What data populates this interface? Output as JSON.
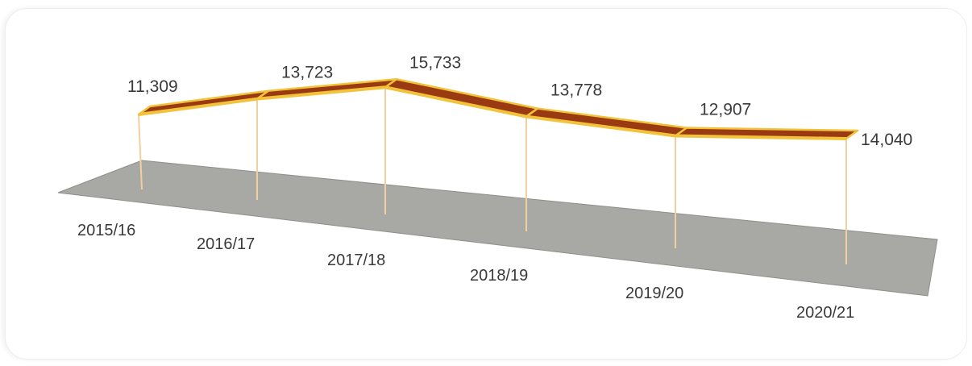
{
  "chart_data": {
    "type": "line",
    "title": "",
    "xlabel": "",
    "ylabel": "",
    "categories": [
      "2015/16",
      "2016/17",
      "2017/18",
      "2018/19",
      "2019/20",
      "2020/21"
    ],
    "values": [
      11309,
      13723,
      15733,
      13778,
      12907,
      14040
    ],
    "value_labels": [
      "11,309",
      "13,723",
      "15,733",
      "13,778",
      "12,907",
      "14,040"
    ],
    "style": "3d-ribbon",
    "grid": false,
    "legend": "none",
    "colors": {
      "ribbon_top": "#9a3a12",
      "ribbon_edge": "#f2c23a",
      "drop_line": "#f3cfa0",
      "floor": "#a8a8a4",
      "floor_edge": "#8e8e8a"
    }
  }
}
